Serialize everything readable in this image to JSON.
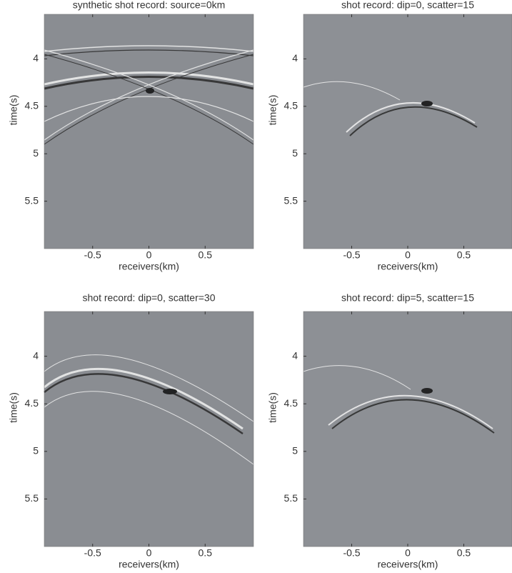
{
  "chart_data": [
    {
      "type": "image",
      "title": "synthetic shot record: source=0km",
      "xlabel": "receivers(km)",
      "ylabel": "time(s)",
      "xlim": [
        -0.93,
        0.93
      ],
      "ylim": [
        3.53,
        6
      ],
      "y_inverted": true,
      "xticks": [
        -0.5,
        0,
        0.5
      ],
      "yticks": [
        4,
        4.5,
        5,
        5.5
      ],
      "color": "#8a8d92"
    },
    {
      "type": "image",
      "title": "shot record: dip=0, scatter=15",
      "xlabel": "receivers(km)",
      "ylabel": "time(s)",
      "xlim": [
        -0.93,
        0.93
      ],
      "ylim": [
        3.53,
        6
      ],
      "y_inverted": true,
      "xticks": [
        -0.5,
        0,
        0.5
      ],
      "yticks": [
        4,
        4.5,
        5,
        5.5
      ],
      "color": "#8d9095"
    },
    {
      "type": "image",
      "title": "shot record: dip=0, scatter=30",
      "xlabel": "receivers(km)",
      "ylabel": "time(s)",
      "xlim": [
        -0.93,
        0.93
      ],
      "ylim": [
        3.53,
        6
      ],
      "y_inverted": true,
      "xticks": [
        -0.5,
        0,
        0.5
      ],
      "yticks": [
        4,
        4.5,
        5,
        5.5
      ],
      "color": "#8a8d92"
    },
    {
      "type": "image",
      "title": "shot record: dip=5, scatter=15",
      "xlabel": "receivers(km)",
      "ylabel": "time(s)",
      "xlim": [
        -0.93,
        0.93
      ],
      "ylim": [
        3.53,
        6
      ],
      "y_inverted": true,
      "xticks": [
        -0.5,
        0,
        0.5
      ],
      "yticks": [
        4,
        4.5,
        5,
        5.5
      ],
      "color": "#8d9095"
    }
  ]
}
